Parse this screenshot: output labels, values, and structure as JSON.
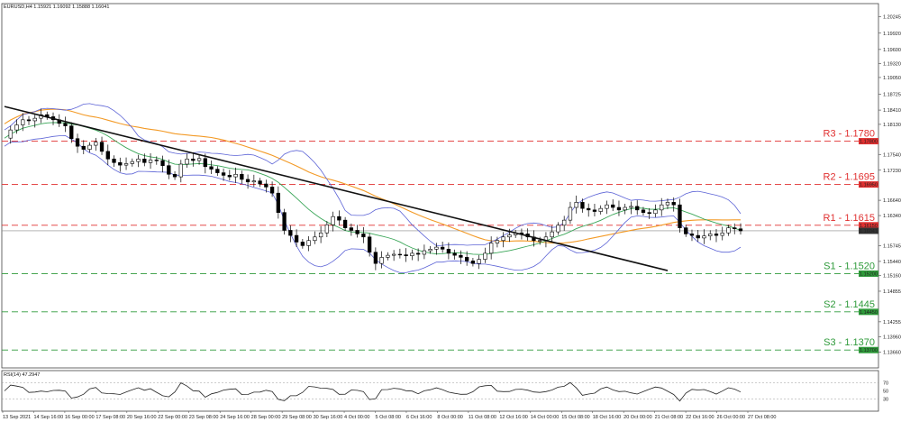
{
  "chart_data": {
    "type": "candlestick",
    "symbol_header": "EURUSD,H4  1.15921 1.16092 1.15888 1.16041",
    "rsi_header": "RSI(14) 47.2947",
    "price_axis": {
      "min": 1.1335,
      "max": 1.205,
      "ticks": [
        {
          "label": "1.20245",
          "v": 1.20245
        },
        {
          "label": "1.19920",
          "v": 1.1992
        },
        {
          "label": "1.19600",
          "v": 1.196
        },
        {
          "label": "1.19320",
          "v": 1.1932
        },
        {
          "label": "1.19050",
          "v": 1.1905
        },
        {
          "label": "1.18725",
          "v": 1.18725
        },
        {
          "label": "1.18410",
          "v": 1.1841
        },
        {
          "label": "1.18130",
          "v": 1.1813
        },
        {
          "label": "1.17540",
          "v": 1.1754
        },
        {
          "label": "1.17230",
          "v": 1.1723
        },
        {
          "label": "1.16640",
          "v": 1.1664
        },
        {
          "label": "1.16340",
          "v": 1.1634
        },
        {
          "label": "1.15745",
          "v": 1.15745
        },
        {
          "label": "1.15440",
          "v": 1.1544
        },
        {
          "label": "1.15160",
          "v": 1.1516
        },
        {
          "label": "1.14855",
          "v": 1.14855
        },
        {
          "label": "1.14255",
          "v": 1.14255
        },
        {
          "label": "1.13960",
          "v": 1.1396
        },
        {
          "label": "1.13660",
          "v": 1.1366
        }
      ]
    },
    "price_tags": [
      {
        "label": "1.17800",
        "v": 1.178,
        "color": "#e03030"
      },
      {
        "label": "1.16950",
        "v": 1.1695,
        "color": "#e03030"
      },
      {
        "label": "1.16150",
        "v": 1.1615,
        "color": "#e03030"
      },
      {
        "label": "1.16041",
        "v": 1.16041,
        "color": "#333333"
      },
      {
        "label": "1.15200",
        "v": 1.152,
        "color": "#2e9a3a"
      },
      {
        "label": "1.14450",
        "v": 1.1445,
        "color": "#2e9a3a"
      },
      {
        "label": "1.13700",
        "v": 1.137,
        "color": "#2e9a3a"
      }
    ],
    "levels": [
      {
        "name": "R3 - 1.1780",
        "v": 1.178,
        "color": "#e03030"
      },
      {
        "name": "R2 - 1.1695",
        "v": 1.1695,
        "color": "#e03030"
      },
      {
        "name": "R1 - 1.1615",
        "v": 1.1615,
        "color": "#e03030"
      },
      {
        "name": "S1 - 1.1520",
        "v": 1.152,
        "color": "#2e9a3a"
      },
      {
        "name": "S2 - 1.1445",
        "v": 1.1445,
        "color": "#2e9a3a"
      },
      {
        "name": "S3 - 1.1370",
        "v": 1.137,
        "color": "#2e9a3a"
      }
    ],
    "current_price": 1.16041,
    "x_labels": [
      "13 Sep 2021",
      "14 Sep 16:00",
      "16 Sep 00:00",
      "17 Sep 08:00",
      "20 Sep 16:00",
      "22 Sep 00:00",
      "23 Sep 08:00",
      "24 Sep 16:00",
      "28 Sep 00:00",
      "29 Sep 08:00",
      "30 Sep 16:00",
      "4 Oct 00:00",
      "5 Oct 08:00",
      "6 Oct 16:00",
      "8 Oct 00:00",
      "11 Oct 08:00",
      "12 Oct 16:00",
      "14 Oct 00:00",
      "15 Oct 08:00",
      "18 Oct 16:00",
      "20 Oct 00:00",
      "21 Oct 08:00",
      "22 Oct 16:00",
      "26 Oct 00:00",
      "27 Oct 08:00"
    ],
    "close_path": [
      1.1786,
      1.1802,
      1.1812,
      1.1822,
      1.182,
      1.1825,
      1.1832,
      1.1828,
      1.1822,
      1.1815,
      1.181,
      1.1785,
      1.177,
      1.1764,
      1.1772,
      1.1778,
      1.176,
      1.1745,
      1.1738,
      1.1733,
      1.1736,
      1.174,
      1.1745,
      1.1738,
      1.1743,
      1.1742,
      1.1732,
      1.1715,
      1.171,
      1.1735,
      1.1745,
      1.1742,
      1.1746,
      1.173,
      1.1725,
      1.1718,
      1.1713,
      1.171,
      1.1715,
      1.1705,
      1.17,
      1.1702,
      1.1696,
      1.169,
      1.1678,
      1.164,
      1.1605,
      1.1595,
      1.1582,
      1.1575,
      1.1585,
      1.1592,
      1.16,
      1.1616,
      1.1632,
      1.1625,
      1.161,
      1.1605,
      1.1598,
      1.1592,
      1.1562,
      1.154,
      1.1552,
      1.1556,
      1.1558,
      1.1557,
      1.1555,
      1.156,
      1.1558,
      1.1565,
      1.1568,
      1.1572,
      1.1568,
      1.156,
      1.1556,
      1.1552,
      1.1545,
      1.154,
      1.1548,
      1.156,
      1.158,
      1.1585,
      1.1592,
      1.1596,
      1.16,
      1.1598,
      1.1592,
      1.1585,
      1.1585,
      1.1592,
      1.1602,
      1.1615,
      1.1625,
      1.165,
      1.166,
      1.1648,
      1.1645,
      1.1642,
      1.1648,
      1.1655,
      1.165,
      1.1645,
      1.165,
      1.1652,
      1.1645,
      1.164,
      1.1638,
      1.1645,
      1.1655,
      1.166,
      1.1655,
      1.161,
      1.1598,
      1.1595,
      1.159,
      1.1594,
      1.1598,
      1.1595,
      1.16,
      1.161,
      1.1608,
      1.1604
    ],
    "trendline": {
      "x_start_index": 0,
      "y_start": 1.1848,
      "x_end_index": 109,
      "y_end": 1.1526
    },
    "overlays": [
      {
        "name": "ma_long",
        "color": "#f39a26"
      },
      {
        "name": "ma_short",
        "color": "#3aa658"
      },
      {
        "name": "bollinger",
        "color": "#5c63d6"
      }
    ],
    "rsi": {
      "levels": [
        30,
        70
      ],
      "last": 47.2947,
      "tick_labels": [
        "30",
        "50",
        "70"
      ]
    }
  }
}
